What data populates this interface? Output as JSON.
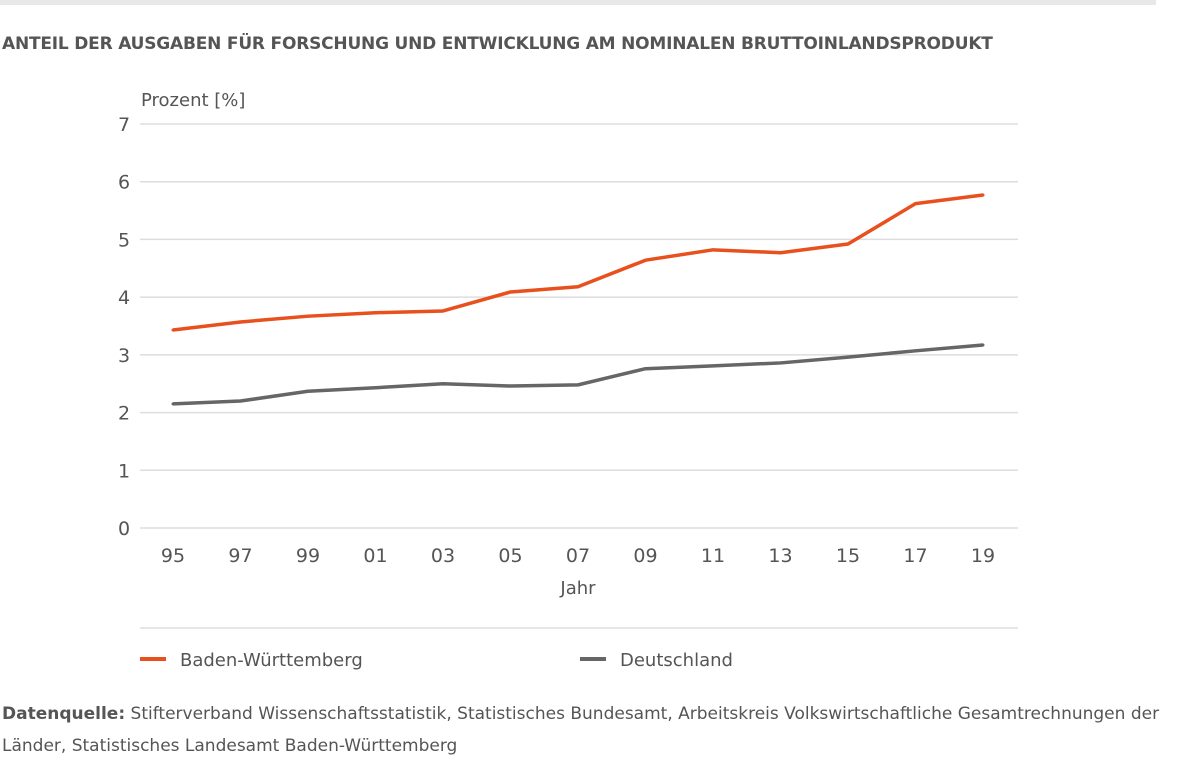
{
  "title": "ANTEIL DER AUSGABEN FÜR FORSCHUNG UND ENTWICKLUNG AM NOMINALEN BRUTTOINLANDSPRODUKT",
  "source_label": "Datenquelle:",
  "source_text": "Stifterverband Wissenschaftsstatistik, Statistisches Bundesamt, Arbeitskreis Volkswirtschaftliche Gesamtrechnungen der Länder, Statistisches Landesamt Baden-Württemberg",
  "chart_data": {
    "type": "line",
    "ylabel": "Prozent [%]",
    "xlabel": "Jahr",
    "ylim": [
      0,
      7
    ],
    "yticks": [
      "0",
      "1",
      "2",
      "3",
      "4",
      "5",
      "6",
      "7"
    ],
    "categories": [
      "95",
      "97",
      "99",
      "01",
      "03",
      "05",
      "07",
      "09",
      "11",
      "13",
      "15",
      "17",
      "19"
    ],
    "grid": true,
    "legend_position": "bottom",
    "series": [
      {
        "name": "Baden-Württemberg",
        "color": "#e8501e",
        "values": [
          3.43,
          3.57,
          3.67,
          3.73,
          3.76,
          4.09,
          4.18,
          4.64,
          4.82,
          4.77,
          4.92,
          5.62,
          5.77
        ]
      },
      {
        "name": "Deutschland",
        "color": "#666666",
        "values": [
          2.15,
          2.2,
          2.37,
          2.43,
          2.5,
          2.46,
          2.48,
          2.76,
          2.81,
          2.86,
          2.96,
          3.07,
          3.17
        ]
      }
    ]
  }
}
